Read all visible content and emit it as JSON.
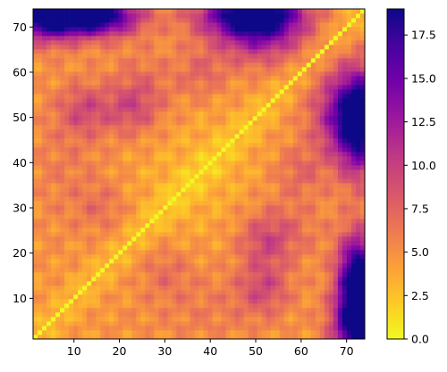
{
  "chart_data": {
    "type": "heatmap",
    "title": "",
    "xlabel": "",
    "ylabel": "",
    "colormap": "plasma_r",
    "n": 74,
    "xlim": [
      1,
      74
    ],
    "ylim": [
      1,
      74
    ],
    "x_ticks": [
      10,
      20,
      30,
      40,
      50,
      60,
      70
    ],
    "y_ticks": [
      10,
      20,
      30,
      40,
      50,
      60,
      70
    ],
    "colorbar": {
      "min": 0.0,
      "max": 19.0,
      "ticks": [
        0.0,
        2.5,
        5.0,
        7.5,
        10.0,
        12.5,
        15.0,
        17.5
      ],
      "tick_labels": [
        "0.0",
        "2.5",
        "5.0",
        "7.5",
        "10.0",
        "12.5",
        "15.0",
        "17.5"
      ]
    },
    "description_of_values": "Symmetric pairwise distance-like matrix: zero on the diagonal, low values (about 2 to 6) across most of the map with a lighter central block near residues 25 to 45, and the largest values (about 15 to 19) in the corners, peaking near (73, 51) and (51, 73), with secondary high regions near (1-10, 65-73) and (65-73, 1-10)."
  }
}
